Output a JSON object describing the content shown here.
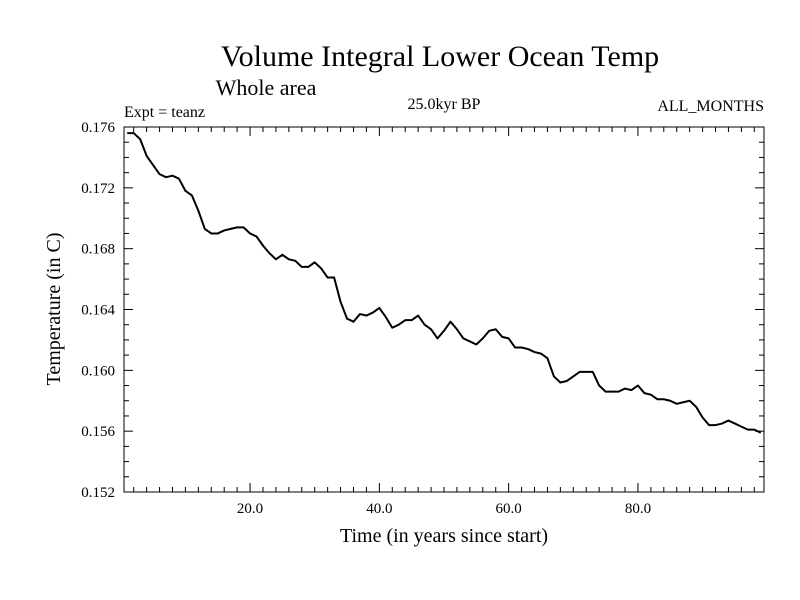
{
  "chart_data": {
    "type": "line",
    "title": "Volume Integral Lower Ocean Temp",
    "subtitle": "Whole area",
    "annotations": {
      "left": "Expt = teanz",
      "center": "25.0kyr BP",
      "right": "ALL_MONTHS"
    },
    "xlabel": "Time (in years since start)",
    "ylabel": "Temperature (in C)",
    "xlim": [
      0.5,
      99.5
    ],
    "ylim": [
      0.152,
      0.176
    ],
    "x_ticks": [
      20,
      40,
      60,
      80
    ],
    "x_tick_labels": [
      "20.0",
      "40.0",
      "60.0",
      "80.0"
    ],
    "y_ticks": [
      0.152,
      0.156,
      0.16,
      0.164,
      0.168,
      0.172,
      0.176
    ],
    "y_tick_labels": [
      "0.152",
      "0.156",
      "0.160",
      "0.164",
      "0.168",
      "0.172",
      "0.176"
    ],
    "grid": false,
    "series": [
      {
        "name": "temperature",
        "color": "#000000",
        "x": [
          1,
          2,
          3,
          4,
          5,
          6,
          7,
          8,
          9,
          10,
          11,
          12,
          13,
          14,
          15,
          16,
          17,
          18,
          19,
          20,
          21,
          22,
          23,
          24,
          25,
          26,
          27,
          28,
          29,
          30,
          31,
          32,
          33,
          34,
          35,
          36,
          37,
          38,
          39,
          40,
          41,
          42,
          43,
          44,
          45,
          46,
          47,
          48,
          49,
          50,
          51,
          52,
          53,
          54,
          55,
          56,
          57,
          58,
          59,
          60,
          61,
          62,
          63,
          64,
          65,
          66,
          67,
          68,
          69,
          70,
          71,
          72,
          73,
          74,
          75,
          76,
          77,
          78,
          79,
          80,
          81,
          82,
          83,
          84,
          85,
          86,
          87,
          88,
          89,
          90,
          91,
          92,
          93,
          94,
          95,
          96,
          97,
          98,
          99
        ],
        "values": [
          0.1756,
          0.1756,
          0.1752,
          0.1741,
          0.1735,
          0.1729,
          0.1727,
          0.1728,
          0.1726,
          0.1718,
          0.1715,
          0.1705,
          0.1693,
          0.169,
          0.169,
          0.1692,
          0.1693,
          0.1694,
          0.1694,
          0.169,
          0.1688,
          0.1682,
          0.1677,
          0.1673,
          0.1676,
          0.1673,
          0.1672,
          0.1668,
          0.1668,
          0.1671,
          0.1667,
          0.1661,
          0.1661,
          0.1645,
          0.1634,
          0.1632,
          0.1637,
          0.1636,
          0.1638,
          0.1641,
          0.1635,
          0.1628,
          0.163,
          0.1633,
          0.1633,
          0.1636,
          0.163,
          0.1627,
          0.1621,
          0.1626,
          0.1632,
          0.1627,
          0.1621,
          0.1619,
          0.1617,
          0.1621,
          0.1626,
          0.1627,
          0.1622,
          0.1621,
          0.1615,
          0.1615,
          0.1614,
          0.1612,
          0.1611,
          0.1608,
          0.1596,
          0.1592,
          0.1593,
          0.1596,
          0.1599,
          0.1599,
          0.1599,
          0.159,
          0.1586,
          0.1586,
          0.1586,
          0.1588,
          0.1587,
          0.159,
          0.1585,
          0.1584,
          0.1581,
          0.1581,
          0.158,
          0.1578,
          0.1579,
          0.158,
          0.1576,
          0.1569,
          0.1564,
          0.1564,
          0.1565,
          0.1567,
          0.1565,
          0.1563,
          0.1561,
          0.1561,
          0.1559
        ]
      }
    ]
  }
}
